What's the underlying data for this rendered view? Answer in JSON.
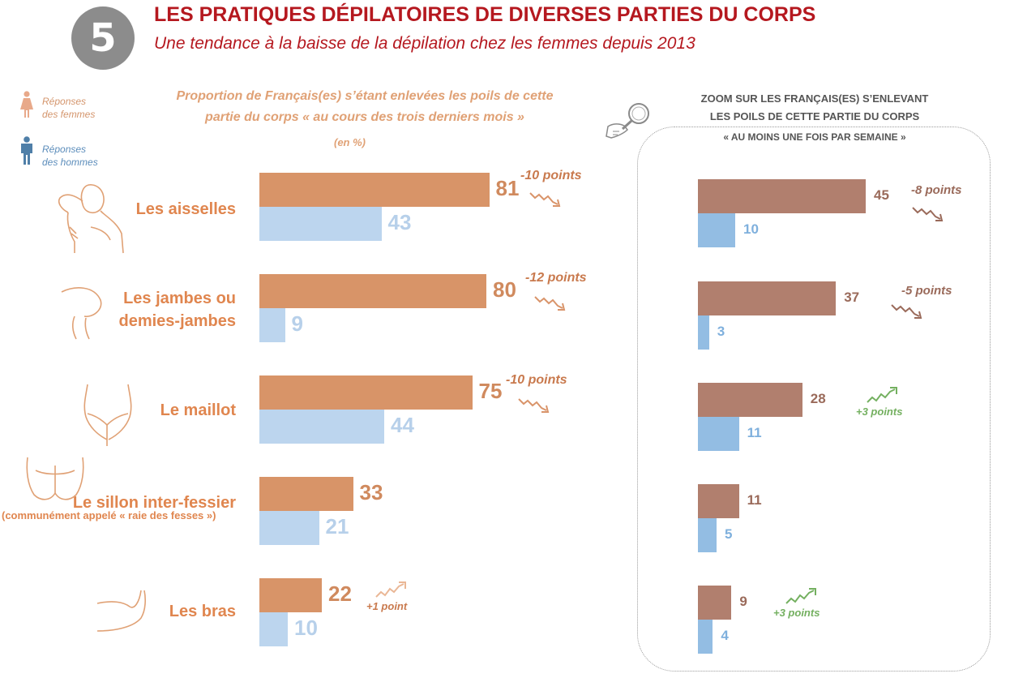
{
  "header": {
    "number": "5",
    "title": "LES PRATIQUES DÉPILATOIRES DE DIVERSES PARTIES DU CORPS",
    "subtitle": "Une tendance à la baisse de la dépilation chez les femmes depuis 2013"
  },
  "legend": {
    "women": [
      "Réponses",
      "des femmes"
    ],
    "men": [
      "Réponses",
      "des hommes"
    ]
  },
  "colors": {
    "title": "#b5181f",
    "women_bar": "#d89468",
    "men_bar": "#bcd5ee",
    "zoom_women_bar": "#b17f6e",
    "zoom_men_bar": "#93bde3",
    "trend_down": "#c97a4e",
    "trend_up_zoom": "#74b060"
  },
  "chart_data": [
    {
      "type": "bar",
      "orientation": "horizontal",
      "title": "Proportion de Français(es) s’étant enlevées les poils de cette partie du corps « au cours des trois derniers mois »",
      "title_lines": [
        "Proportion de Français(es) s’étant enlevées les poils de cette",
        "partie du corps « au cours des trois derniers mois »"
      ],
      "unit": "(en %)",
      "categories": [
        "Les aisselles",
        "Les jambes ou demies-jambes",
        "Le maillot",
        "Le sillon inter-fessier",
        "Les bras"
      ],
      "category_lines": [
        [
          "Les aisselles"
        ],
        [
          "Les jambes ou",
          "demies-jambes"
        ],
        [
          "Le maillot"
        ],
        [
          "Le sillon inter-fessier"
        ],
        [
          "Les bras"
        ]
      ],
      "category_note": "(communément appelé « raie des fesses »)",
      "series": [
        {
          "values": [
            81,
            80,
            75,
            33,
            22
          ],
          "labels": [
            "81",
            "80",
            "75",
            "33",
            "22"
          ]
        },
        {
          "values": [
            43,
            9,
            44,
            21,
            10
          ],
          "labels": [
            "43",
            "9",
            "44",
            "21",
            "10"
          ]
        }
      ],
      "annotations": [
        "-10 points",
        "-12 points",
        "-10 points",
        "",
        "+1 point"
      ],
      "annotation_direction": [
        "down",
        "down",
        "down",
        "",
        "up"
      ],
      "xlim": [
        0,
        100
      ]
    },
    {
      "type": "bar",
      "orientation": "horizontal",
      "title_lines": [
        "ZOOM SUR LES FRANÇAIS(ES) S’ENLEVANT",
        "LES POILS DE CETTE PARTIE DU CORPS",
        "« AU MOINS UNE FOIS PAR SEMAINE »"
      ],
      "categories": [
        "Les aisselles",
        "Les jambes ou demies-jambes",
        "Le maillot",
        "Le sillon inter-fessier",
        "Les bras"
      ],
      "series": [
        {
          "values": [
            45,
            37,
            28,
            11,
            9
          ],
          "labels": [
            "45",
            "37",
            "28",
            "11",
            "9"
          ]
        },
        {
          "values": [
            10,
            3,
            11,
            5,
            4
          ],
          "labels": [
            "10",
            "3",
            "11",
            "5",
            "4"
          ]
        }
      ],
      "annotations": [
        "-8 points",
        "-5 points",
        "+3 points",
        "",
        "+3 points"
      ],
      "annotation_direction": [
        "down",
        "down",
        "up",
        "",
        "up"
      ],
      "xlim": [
        0,
        100
      ]
    }
  ]
}
